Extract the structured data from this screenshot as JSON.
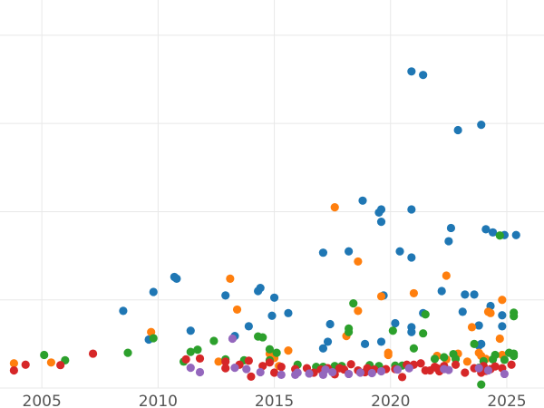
{
  "chart_data": {
    "type": "scatter",
    "title": "",
    "xlabel": "",
    "ylabel": "",
    "xlim": [
      2003.2,
      2026.6
    ],
    "ylim": [
      0,
      88
    ],
    "x_ticks": [
      2005,
      2010,
      2015,
      2020,
      2025
    ],
    "x_tick_labels": [
      "2005",
      "2010",
      "2015",
      "2020",
      "2025"
    ],
    "y_gridlines": [
      0,
      20,
      40,
      60,
      80
    ],
    "y_tick_labels_visible": false,
    "grid": true,
    "legend": "none",
    "colors": {
      "blue": "#1f77b4",
      "orange": "#ff7f0e",
      "green": "#2ca02c",
      "red": "#d62728",
      "purple": "#9467bd"
    },
    "series": [
      {
        "color": "#1f77b4",
        "points": [
          [
            2008.5,
            17.5
          ],
          [
            2009.6,
            11
          ],
          [
            2009.8,
            21.8
          ],
          [
            2010.7,
            25.2
          ],
          [
            2010.8,
            24.8
          ],
          [
            2011.4,
            13
          ],
          [
            2012.9,
            21
          ],
          [
            2013.3,
            11.8
          ],
          [
            2013.9,
            14
          ],
          [
            2014.3,
            22
          ],
          [
            2014.4,
            22.7
          ],
          [
            2015.0,
            20.5
          ],
          [
            2014.9,
            16.4
          ],
          [
            2015.6,
            17
          ],
          [
            2017.1,
            9
          ],
          [
            2017.3,
            10.5
          ],
          [
            2017.1,
            30.7
          ],
          [
            2017.4,
            14.5
          ],
          [
            2018.2,
            31
          ],
          [
            2018.8,
            42.5
          ],
          [
            2018.9,
            10
          ],
          [
            2019.5,
            39.8
          ],
          [
            2019.6,
            40.5
          ],
          [
            2019.6,
            37.7
          ],
          [
            2019.7,
            21
          ],
          [
            2019.6,
            10.5
          ],
          [
            2020.2,
            14.7
          ],
          [
            2020.4,
            31
          ],
          [
            2020.9,
            29.6
          ],
          [
            2020.9,
            13.8
          ],
          [
            2020.9,
            12.7
          ],
          [
            2020.9,
            40.5
          ],
          [
            2020.9,
            71.8
          ],
          [
            2021.4,
            71
          ],
          [
            2021.4,
            17
          ],
          [
            2022.2,
            22
          ],
          [
            2022.5,
            33.3
          ],
          [
            2022.6,
            36.3
          ],
          [
            2022.9,
            58.5
          ],
          [
            2023.2,
            21.2
          ],
          [
            2023.1,
            17.3
          ],
          [
            2023.6,
            21.2
          ],
          [
            2023.8,
            9.6
          ],
          [
            2023.8,
            14.2
          ],
          [
            2023.9,
            59.7
          ],
          [
            2024.1,
            36
          ],
          [
            2024.3,
            18.6
          ],
          [
            2024.4,
            35.3
          ],
          [
            2024.8,
            16.5
          ],
          [
            2024.8,
            14
          ],
          [
            2024.9,
            34.7
          ],
          [
            2025.4,
            34.7
          ],
          [
            2023.9,
            10
          ]
        ]
      },
      {
        "color": "#ff7f0e",
        "points": [
          [
            2003.8,
            5.6
          ],
          [
            2005.4,
            5.8
          ],
          [
            2009.7,
            12.7
          ],
          [
            2012.6,
            6
          ],
          [
            2013.1,
            24.8
          ],
          [
            2013.4,
            17.8
          ],
          [
            2014.8,
            7.8
          ],
          [
            2015.0,
            6.8
          ],
          [
            2015.2,
            5
          ],
          [
            2015.6,
            8.5
          ],
          [
            2017.2,
            4.5
          ],
          [
            2017.6,
            41
          ],
          [
            2018.1,
            11.8
          ],
          [
            2018.6,
            17.5
          ],
          [
            2018.6,
            28.7
          ],
          [
            2019.6,
            20.8
          ],
          [
            2019.9,
            8
          ],
          [
            2019.9,
            7.5
          ],
          [
            2021.0,
            21.5
          ],
          [
            2022.4,
            25.5
          ],
          [
            2022.0,
            7.3
          ],
          [
            2022.9,
            7.8
          ],
          [
            2023.3,
            6
          ],
          [
            2023.5,
            13.8
          ],
          [
            2023.8,
            8
          ],
          [
            2023.9,
            7.3
          ],
          [
            2024.2,
            17.3
          ],
          [
            2024.3,
            17
          ],
          [
            2024.7,
            11.2
          ],
          [
            2024.8,
            20
          ],
          [
            2024.8,
            7.5
          ],
          [
            2024.1,
            6.6
          ],
          [
            2022.4,
            6.5
          ]
        ]
      },
      {
        "color": "#2ca02c",
        "points": [
          [
            2005.1,
            7.5
          ],
          [
            2006.0,
            6.3
          ],
          [
            2008.7,
            8
          ],
          [
            2009.8,
            11.3
          ],
          [
            2011.1,
            6
          ],
          [
            2011.4,
            8.2
          ],
          [
            2011.7,
            8.7
          ],
          [
            2012.4,
            10.7
          ],
          [
            2012.9,
            6.5
          ],
          [
            2013.7,
            6.3
          ],
          [
            2014.3,
            11.7
          ],
          [
            2014.5,
            11.5
          ],
          [
            2014.8,
            8.8
          ],
          [
            2015.1,
            8
          ],
          [
            2014.8,
            6.3
          ],
          [
            2016.0,
            5.3
          ],
          [
            2016.8,
            4.8
          ],
          [
            2017.1,
            4.8
          ],
          [
            2017.6,
            5
          ],
          [
            2017.9,
            5
          ],
          [
            2018.2,
            12.7
          ],
          [
            2018.2,
            13.5
          ],
          [
            2018.4,
            19.2
          ],
          [
            2019.1,
            5.2
          ],
          [
            2019.5,
            4.6
          ],
          [
            2019.5,
            5
          ],
          [
            2020.1,
            13
          ],
          [
            2020.2,
            5.1
          ],
          [
            2020.5,
            5.1
          ],
          [
            2021.0,
            9
          ],
          [
            2021.4,
            12.4
          ],
          [
            2021.5,
            16.7
          ],
          [
            2021.9,
            6.6
          ],
          [
            2022.3,
            7
          ],
          [
            2022.7,
            7.7
          ],
          [
            2022.8,
            6.6
          ],
          [
            2023.6,
            10
          ],
          [
            2023.9,
            0.8
          ],
          [
            2023.8,
            4.6
          ],
          [
            2024.0,
            6.1
          ],
          [
            2024.5,
            7.5
          ],
          [
            2024.7,
            34.6
          ],
          [
            2024.9,
            6.4
          ],
          [
            2025.1,
            8
          ],
          [
            2025.3,
            17.1
          ],
          [
            2025.3,
            16.3
          ],
          [
            2025.3,
            7.3
          ],
          [
            2025.3,
            7.8
          ],
          [
            2024.4,
            6.5
          ]
        ]
      },
      {
        "color": "#d62728",
        "points": [
          [
            2003.8,
            4
          ],
          [
            2004.3,
            5.3
          ],
          [
            2005.8,
            5.2
          ],
          [
            2007.2,
            7.8
          ],
          [
            2011.2,
            6.5
          ],
          [
            2011.8,
            6.7
          ],
          [
            2012.9,
            4.5
          ],
          [
            2012.9,
            6
          ],
          [
            2013.5,
            5.3
          ],
          [
            2013.9,
            6.2
          ],
          [
            2014.0,
            2.6
          ],
          [
            2014.5,
            5
          ],
          [
            2014.8,
            5.8
          ],
          [
            2015.0,
            3.5
          ],
          [
            2015.3,
            4.8
          ],
          [
            2015.9,
            4.3
          ],
          [
            2016.4,
            4.5
          ],
          [
            2016.7,
            3.5
          ],
          [
            2017.0,
            4.2
          ],
          [
            2017.3,
            4.5
          ],
          [
            2017.6,
            3.1
          ],
          [
            2017.8,
            4.5
          ],
          [
            2018.0,
            4.2
          ],
          [
            2018.3,
            5.4
          ],
          [
            2018.6,
            4
          ],
          [
            2018.9,
            3.6
          ],
          [
            2019.0,
            4.5
          ],
          [
            2019.3,
            4.2
          ],
          [
            2019.8,
            4.3
          ],
          [
            2020.2,
            4.3
          ],
          [
            2020.5,
            2.5
          ],
          [
            2020.7,
            5.3
          ],
          [
            2021.0,
            5.3
          ],
          [
            2021.3,
            5.6
          ],
          [
            2021.5,
            4
          ],
          [
            2021.7,
            4
          ],
          [
            2021.9,
            4.8
          ],
          [
            2022.0,
            4.5
          ],
          [
            2022.3,
            5
          ],
          [
            2022.8,
            5.3
          ],
          [
            2023.2,
            3.5
          ],
          [
            2023.9,
            3.5
          ],
          [
            2024.1,
            3.9
          ],
          [
            2024.3,
            4.3
          ],
          [
            2024.5,
            4.9
          ],
          [
            2024.8,
            4.5
          ],
          [
            2025.2,
            5.3
          ],
          [
            2023.6,
            4.5
          ],
          [
            2022.1,
            3.8
          ],
          [
            2024.0,
            5
          ]
        ]
      },
      {
        "color": "#9467bd",
        "points": [
          [
            2011.4,
            4.6
          ],
          [
            2011.8,
            3.6
          ],
          [
            2013.2,
            11.2
          ],
          [
            2013.3,
            4.6
          ],
          [
            2013.8,
            4.3
          ],
          [
            2014.4,
            3.6
          ],
          [
            2015.3,
            3
          ],
          [
            2016.0,
            3.5
          ],
          [
            2016.5,
            3.3
          ],
          [
            2017.1,
            3
          ],
          [
            2017.2,
            4.2
          ],
          [
            2017.5,
            3.6
          ],
          [
            2018.2,
            3.2
          ],
          [
            2018.7,
            3.5
          ],
          [
            2019.2,
            3.4
          ],
          [
            2019.6,
            3.8
          ],
          [
            2020.3,
            4.2
          ],
          [
            2020.8,
            4.5
          ],
          [
            2022.3,
            4.3
          ],
          [
            2022.5,
            4.1
          ],
          [
            2023.8,
            4.5
          ],
          [
            2024.2,
            4
          ],
          [
            2024.9,
            3.2
          ],
          [
            2015.9,
            3
          ]
        ]
      }
    ]
  }
}
